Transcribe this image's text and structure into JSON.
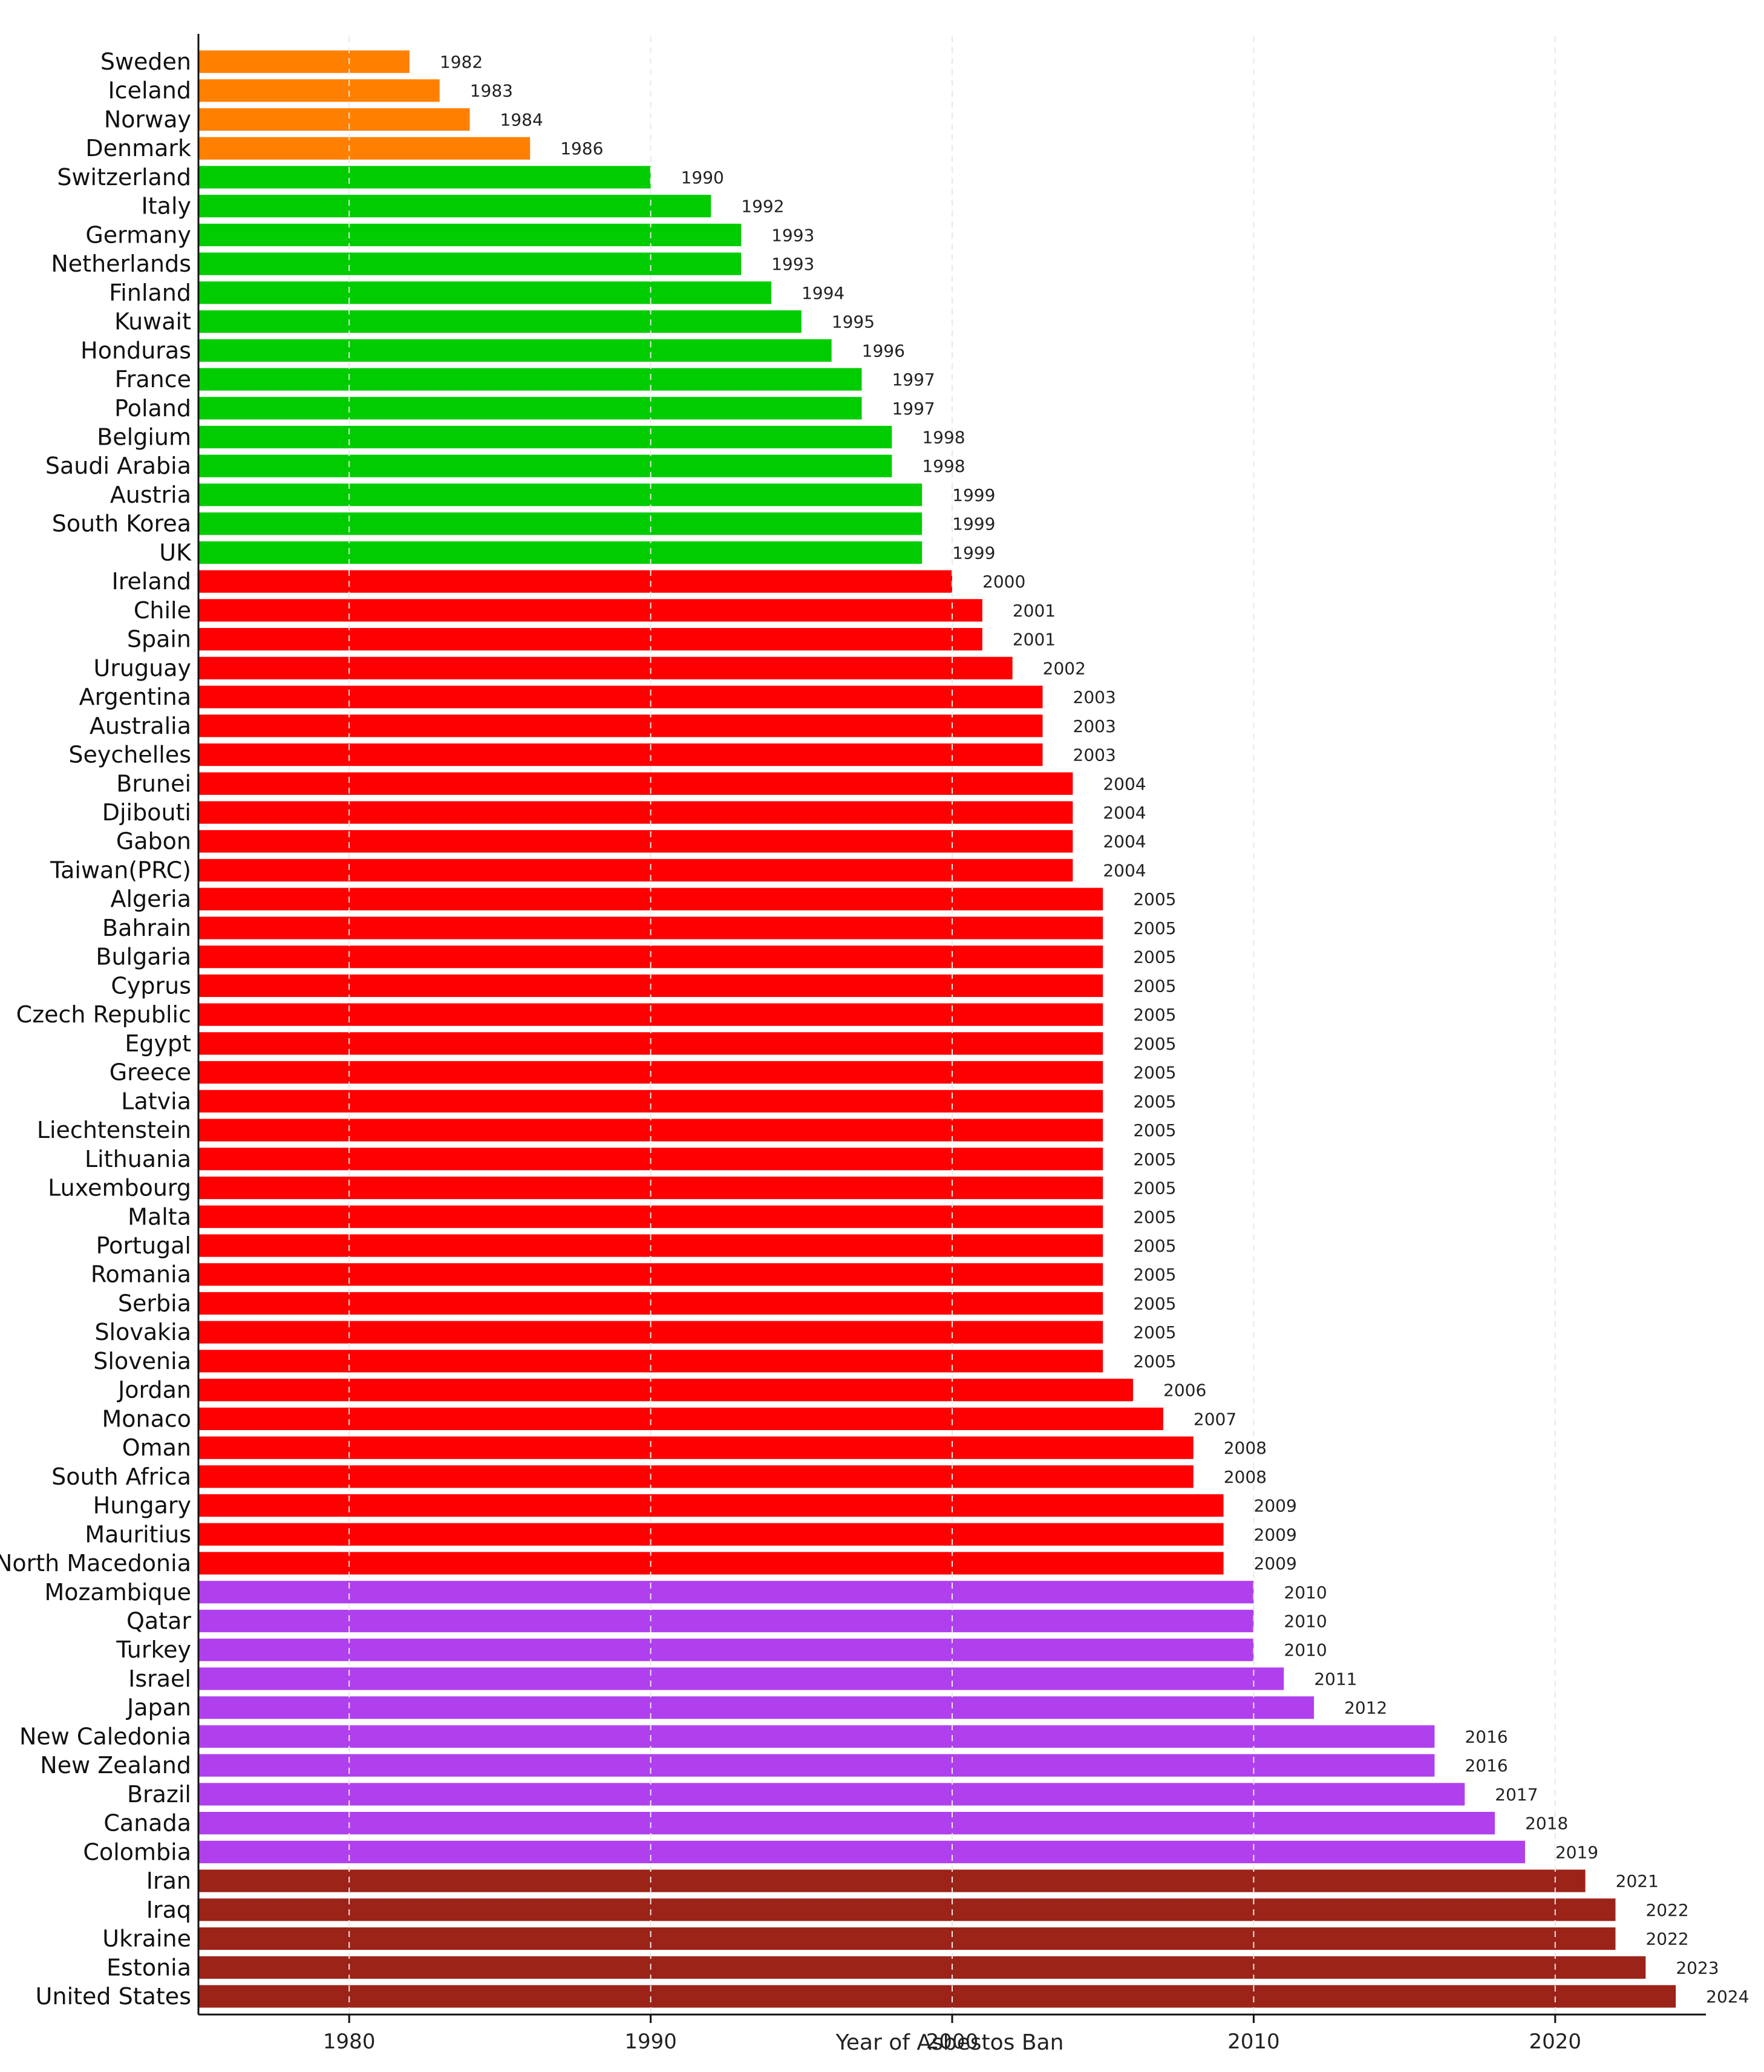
{
  "chart_data": {
    "type": "bar",
    "orientation": "horizontal",
    "title": "",
    "xlabel": "Year of Asbestos Ban",
    "ylabel": "",
    "xlim": [
      1975,
      2025
    ],
    "xticks": [
      1980,
      1990,
      2000,
      2010,
      2020
    ],
    "grid": "vertical dashed",
    "legend": "none",
    "categories": [
      "Sweden",
      "Iceland",
      "Norway",
      "Denmark",
      "Switzerland",
      "Italy",
      "Germany",
      "Netherlands",
      "Finland",
      "Kuwait",
      "Honduras",
      "France",
      "Poland",
      "Belgium",
      "Saudi Arabia",
      "Austria",
      "South Korea",
      "UK",
      "Ireland",
      "Chile",
      "Spain",
      "Uruguay",
      "Argentina",
      "Australia",
      "Seychelles",
      "Brunei",
      "Djibouti",
      "Gabon",
      "Taiwan(PRC)",
      "Algeria",
      "Bahrain",
      "Bulgaria",
      "Cyprus",
      "Czech Republic",
      "Egypt",
      "Greece",
      "Latvia",
      "Liechtenstein",
      "Lithuania",
      "Luxembourg",
      "Malta",
      "Portugal",
      "Romania",
      "Serbia",
      "Slovakia",
      "Slovenia",
      "Jordan",
      "Monaco",
      "Oman",
      "South Africa",
      "Hungary",
      "Mauritius",
      "North Macedonia",
      "Mozambique",
      "Qatar",
      "Turkey",
      "Israel",
      "Japan",
      "New Caledonia",
      "New Zealand",
      "Brazil",
      "Canada",
      "Colombia",
      "Iran",
      "Iraq",
      "Ukraine",
      "Estonia",
      "United States"
    ],
    "values": [
      1982,
      1983,
      1984,
      1986,
      1990,
      1992,
      1993,
      1993,
      1994,
      1995,
      1996,
      1997,
      1997,
      1998,
      1998,
      1999,
      1999,
      1999,
      2000,
      2001,
      2001,
      2002,
      2003,
      2003,
      2003,
      2004,
      2004,
      2004,
      2004,
      2005,
      2005,
      2005,
      2005,
      2005,
      2005,
      2005,
      2005,
      2005,
      2005,
      2005,
      2005,
      2005,
      2005,
      2005,
      2005,
      2005,
      2006,
      2007,
      2008,
      2008,
      2009,
      2009,
      2009,
      2010,
      2010,
      2010,
      2011,
      2012,
      2016,
      2016,
      2017,
      2018,
      2019,
      2021,
      2022,
      2022,
      2023,
      2024
    ],
    "value_labels": [
      "1982",
      "1983",
      "1984",
      "1986",
      "1990",
      "1992",
      "1993",
      "1993",
      "1994",
      "1995",
      "1996",
      "1997",
      "1997",
      "1998",
      "1998",
      "1999",
      "1999",
      "1999",
      "2000",
      "2001",
      "2001",
      "2002",
      "2003",
      "2003",
      "2003",
      "2004",
      "2004",
      "2004",
      "2004",
      "2005",
      "2005",
      "2005",
      "2005",
      "2005",
      "2005",
      "2005",
      "2005",
      "2005",
      "2005",
      "2005",
      "2005",
      "2005",
      "2005",
      "2005",
      "2005",
      "2005",
      "2006",
      "2007",
      "2008",
      "2008",
      "2009",
      "2009",
      "2009",
      "2010",
      "2010",
      "2010",
      "2011",
      "2012",
      "2016",
      "2016",
      "2017",
      "2018",
      "2019",
      "2021",
      "2022",
      "2022",
      "2023",
      "2024"
    ],
    "color_groups": [
      {
        "color": "#ff8000",
        "from": 0,
        "to": 3
      },
      {
        "color": "#00cc00",
        "from": 4,
        "to": 17
      },
      {
        "color": "#ff0000",
        "from": 18,
        "to": 52
      },
      {
        "color": "#b040ee",
        "from": 53,
        "to": 62
      },
      {
        "color": "#9b2318",
        "from": 63,
        "to": 67
      }
    ]
  }
}
